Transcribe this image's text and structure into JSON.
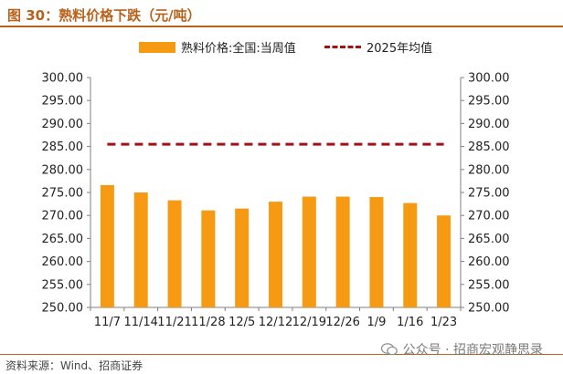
{
  "header": {
    "title": "图 30：熟料价格下跌（元/吨）"
  },
  "footer": {
    "source": "资料来源：Wind、招商证券",
    "watermark": "公众号 · 招商宏观静思录"
  },
  "colors": {
    "bar": "#f59a12",
    "avg_line": "#a50f16",
    "accent": "#b8621b"
  },
  "chart_data": {
    "type": "bar",
    "categories": [
      "11/7",
      "11/14",
      "11/21",
      "11/28",
      "12/5",
      "12/12",
      "12/19",
      "12/26",
      "1/9",
      "1/16",
      "1/23"
    ],
    "series": [
      {
        "name": "熟料价格:全国:当周值",
        "type": "bar",
        "values": [
          276.6,
          275.0,
          273.3,
          271.1,
          271.5,
          273.0,
          274.1,
          274.1,
          274.0,
          272.7,
          270.0
        ]
      },
      {
        "name": "2025年均值",
        "type": "line",
        "style": "dashed",
        "values": [
          285.5,
          285.5,
          285.5,
          285.5,
          285.5,
          285.5,
          285.5,
          285.5,
          285.5,
          285.5,
          285.5
        ]
      }
    ],
    "ylim": [
      250,
      300
    ],
    "yticks": [
      "250.00",
      "255.00",
      "260.00",
      "265.00",
      "270.00",
      "275.00",
      "280.00",
      "285.00",
      "290.00",
      "295.00",
      "300.00"
    ],
    "secondary_axis": true,
    "legend_position": "top",
    "grid": false
  }
}
